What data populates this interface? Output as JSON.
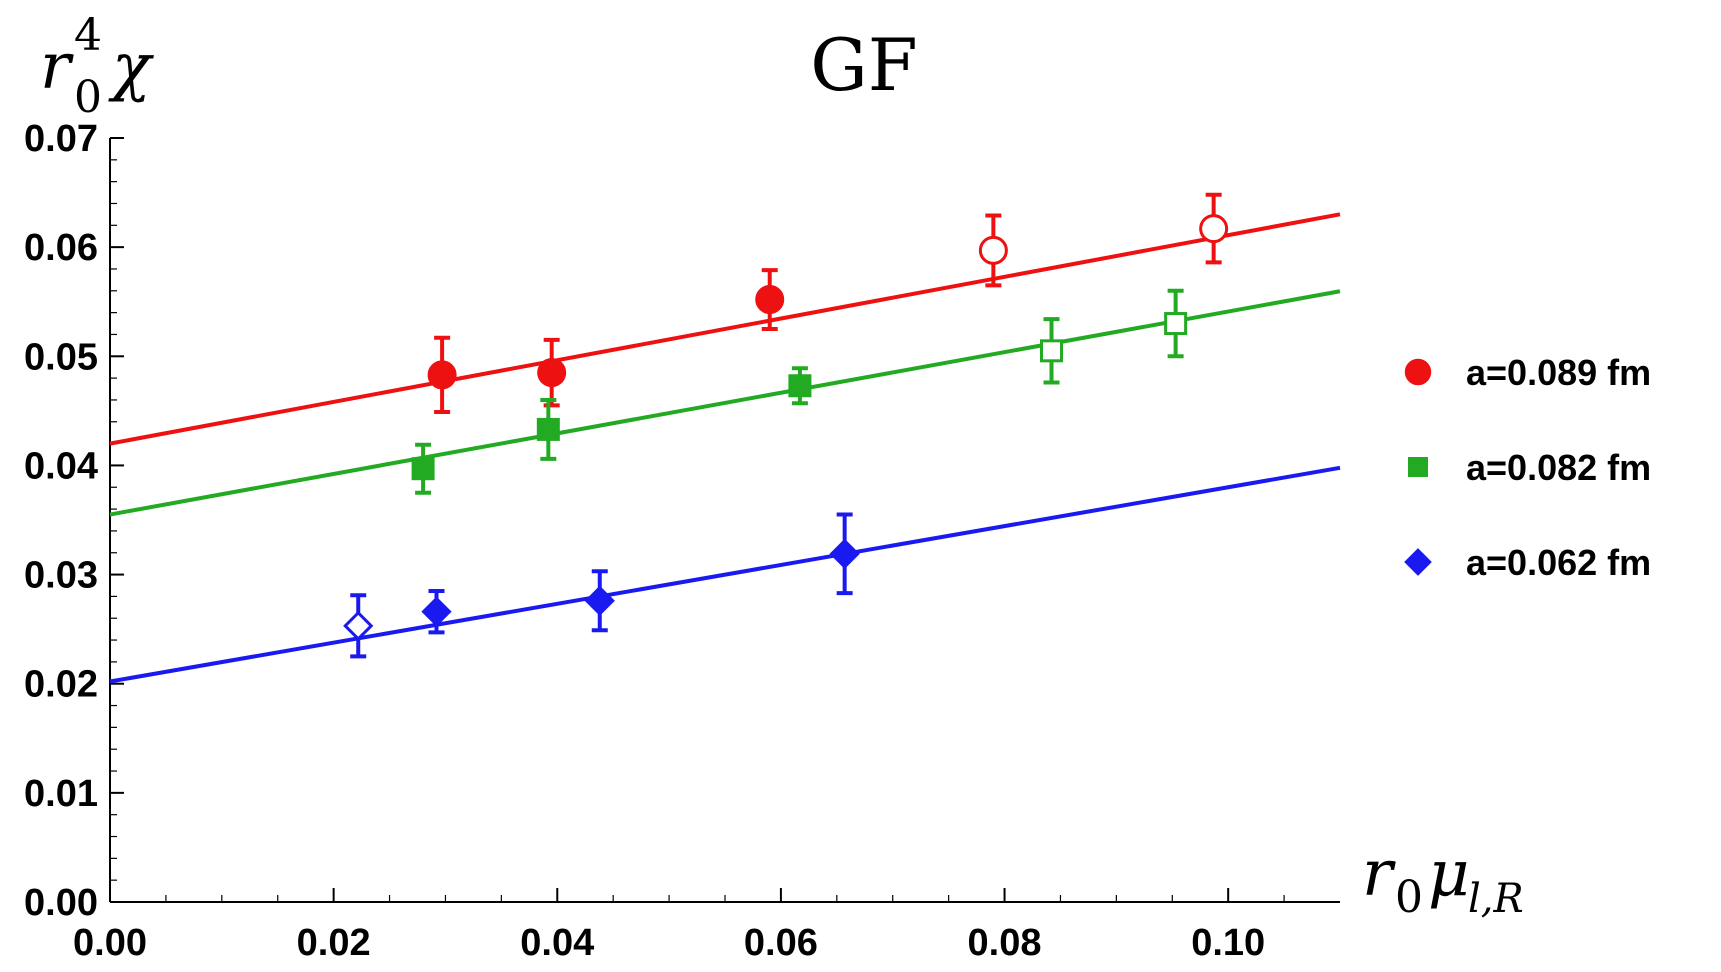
{
  "chart_data": {
    "type": "scatter",
    "title": "GF",
    "ylabel": {
      "base": "r",
      "sub": "0",
      "sup": "4",
      "symbol": "χ"
    },
    "xlabel": {
      "base": "r",
      "sub": "0",
      "symbol": "μ",
      "sub2": "l,R"
    },
    "xlim": [
      0.0,
      0.11
    ],
    "ylim": [
      0.0,
      0.07
    ],
    "xticks": [
      "0.00",
      "0.02",
      "0.04",
      "0.06",
      "0.08",
      "0.10"
    ],
    "xtick_values": [
      0.0,
      0.02,
      0.04,
      0.06,
      0.08,
      0.1
    ],
    "yticks": [
      "0.00",
      "0.01",
      "0.02",
      "0.03",
      "0.04",
      "0.05",
      "0.06",
      "0.07"
    ],
    "ytick_values": [
      0.0,
      0.01,
      0.02,
      0.03,
      0.04,
      0.05,
      0.06,
      0.07
    ],
    "legend_position": "right",
    "series": [
      {
        "name": "a=0.089 fm",
        "color": "#ee1111",
        "marker": "circle",
        "fit": {
          "intercept": 0.042,
          "slope": 0.191
        },
        "points": [
          {
            "x": 0.0297,
            "y": 0.0483,
            "err": 0.0034,
            "filled": true
          },
          {
            "x": 0.0395,
            "y": 0.0485,
            "err": 0.003,
            "filled": true
          },
          {
            "x": 0.059,
            "y": 0.0552,
            "err": 0.0027,
            "filled": true
          },
          {
            "x": 0.079,
            "y": 0.0597,
            "err": 0.0032,
            "filled": false
          },
          {
            "x": 0.0987,
            "y": 0.0617,
            "err": 0.0031,
            "filled": false
          }
        ]
      },
      {
        "name": "a=0.082 fm",
        "color": "#22aa22",
        "marker": "square",
        "fit": {
          "intercept": 0.0355,
          "slope": 0.186
        },
        "points": [
          {
            "x": 0.028,
            "y": 0.0397,
            "err": 0.0022,
            "filled": true
          },
          {
            "x": 0.0392,
            "y": 0.0433,
            "err": 0.0027,
            "filled": true
          },
          {
            "x": 0.0617,
            "y": 0.0473,
            "err": 0.0016,
            "filled": true
          },
          {
            "x": 0.0842,
            "y": 0.0505,
            "err": 0.0029,
            "filled": false
          },
          {
            "x": 0.0953,
            "y": 0.053,
            "err": 0.003,
            "filled": false
          }
        ]
      },
      {
        "name": "a=0.062 fm",
        "color": "#1a1af0",
        "marker": "diamond",
        "fit": {
          "intercept": 0.0202,
          "slope": 0.178
        },
        "points": [
          {
            "x": 0.0222,
            "y": 0.0253,
            "err": 0.0028,
            "filled": false
          },
          {
            "x": 0.0292,
            "y": 0.0266,
            "err": 0.0019,
            "filled": true
          },
          {
            "x": 0.0438,
            "y": 0.0276,
            "err": 0.0027,
            "filled": true
          },
          {
            "x": 0.0657,
            "y": 0.0319,
            "err": 0.0036,
            "filled": true
          }
        ]
      }
    ]
  }
}
